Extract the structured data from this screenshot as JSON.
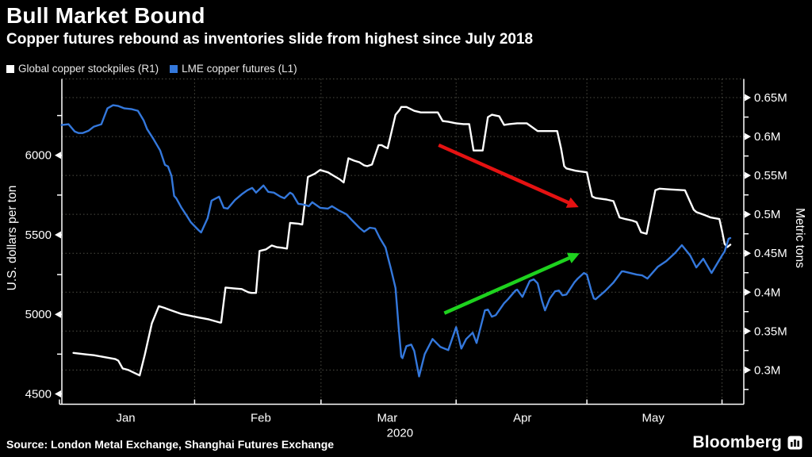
{
  "header": {
    "title": "Bull Market Bound",
    "subtitle": "Copper futures rebound as inventories slide from highest since July 2018"
  },
  "legend": [
    {
      "label": "Global copper stockpiles (R1)",
      "color": "#ffffff"
    },
    {
      "label": "LME copper futures (L1)",
      "color": "#3478dc"
    }
  ],
  "footer": {
    "source": "Source: London Metal Exchange, Shanghai Futures Exchange",
    "brand": "Bloomberg"
  },
  "colors": {
    "background": "#000000",
    "grid": "#4d4d44",
    "axis": "#ffffff",
    "stockpiles": "#ffffff",
    "futures": "#3478dc",
    "red_arrow": "#e51212",
    "green_arrow": "#1ed21e"
  },
  "chart_data": {
    "type": "line",
    "title": "Bull Market Bound",
    "subtitle": "Copper futures rebound as inventories slide from highest since July 2018",
    "x_axis": {
      "unit": "days since Jan 1 2020",
      "range": [
        0,
        157
      ],
      "month_ticks": [
        {
          "label": "Jan",
          "start_day": 0
        },
        {
          "label": "Feb",
          "start_day": 31
        },
        {
          "label": "Mar",
          "start_day": 60
        },
        {
          "label": "Apr",
          "start_day": 91
        },
        {
          "label": "May",
          "start_day": 121
        }
      ],
      "end_boundary_day": 152,
      "year_label": "2020",
      "year_label_under": "Mar"
    },
    "y_left": {
      "label": "U.S. dollars per ton",
      "range": [
        4435,
        6480
      ],
      "major_ticks": [
        4500,
        5000,
        5500,
        6000
      ],
      "minor_ticks": [
        4750,
        5250,
        5750,
        6250
      ]
    },
    "y_right": {
      "label": "Metric tons",
      "range": [
        0.256,
        0.674
      ],
      "major_ticks": [
        {
          "value": 0.3,
          "label": "0.3M"
        },
        {
          "value": 0.35,
          "label": "0.35M"
        },
        {
          "value": 0.4,
          "label": "0.4M"
        },
        {
          "value": 0.45,
          "label": "0.45M"
        },
        {
          "value": 0.5,
          "label": "0.5M"
        },
        {
          "value": 0.55,
          "label": "0.55M"
        },
        {
          "value": 0.6,
          "label": "0.6M"
        },
        {
          "value": 0.65,
          "label": "0.65M"
        }
      ],
      "minor_ticks": [
        0.275,
        0.325,
        0.375,
        0.425,
        0.475,
        0.525,
        0.575,
        0.625
      ],
      "gridlines_at_major": true
    },
    "series": [
      {
        "name": "Global copper stockpiles (R1)",
        "axis": "right",
        "unit": "million metric tons",
        "color": "#ffffff",
        "points": [
          [
            3.2,
            0.322
          ],
          [
            6.1,
            0.32
          ],
          [
            7.9,
            0.319
          ],
          [
            12.8,
            0.314
          ],
          [
            13.5,
            0.312
          ],
          [
            14.5,
            0.302
          ],
          [
            15.8,
            0.3
          ],
          [
            18.4,
            0.293
          ],
          [
            19.6,
            0.32
          ],
          [
            21.2,
            0.36
          ],
          [
            22.8,
            0.382
          ],
          [
            24.0,
            0.38
          ],
          [
            25.4,
            0.377
          ],
          [
            28.0,
            0.372
          ],
          [
            30.6,
            0.369
          ],
          [
            34.3,
            0.365
          ],
          [
            36.8,
            0.361
          ],
          [
            37.1,
            0.361
          ],
          [
            38.1,
            0.406
          ],
          [
            39.9,
            0.405
          ],
          [
            41.8,
            0.404
          ],
          [
            43.3,
            0.4
          ],
          [
            44.0,
            0.399
          ],
          [
            45.1,
            0.399
          ],
          [
            45.9,
            0.453
          ],
          [
            47.4,
            0.455
          ],
          [
            48.7,
            0.46
          ],
          [
            49.8,
            0.458
          ],
          [
            51.1,
            0.457
          ],
          [
            52.2,
            0.456
          ],
          [
            52.9,
            0.489
          ],
          [
            54.8,
            0.488
          ],
          [
            55.7,
            0.487
          ],
          [
            57.0,
            0.548
          ],
          [
            58.5,
            0.552
          ],
          [
            59.8,
            0.557
          ],
          [
            61.6,
            0.554
          ],
          [
            63.1,
            0.549
          ],
          [
            64.3,
            0.545
          ],
          [
            65.2,
            0.541
          ],
          [
            66.3,
            0.572
          ],
          [
            67.6,
            0.569
          ],
          [
            68.8,
            0.567
          ],
          [
            69.9,
            0.563
          ],
          [
            70.6,
            0.562
          ],
          [
            71.7,
            0.564
          ],
          [
            73.2,
            0.589
          ],
          [
            73.9,
            0.589
          ],
          [
            74.8,
            0.586
          ],
          [
            75.3,
            0.585
          ],
          [
            77.1,
            0.628
          ],
          [
            78.0,
            0.634
          ],
          [
            78.4,
            0.638
          ],
          [
            79.6,
            0.638
          ],
          [
            80.7,
            0.635
          ],
          [
            81.4,
            0.633
          ],
          [
            82.9,
            0.631
          ],
          [
            84.7,
            0.631
          ],
          [
            86.8,
            0.631
          ],
          [
            87.9,
            0.62
          ],
          [
            89.2,
            0.619
          ],
          [
            91.0,
            0.617
          ],
          [
            92.7,
            0.616
          ],
          [
            94.0,
            0.616
          ],
          [
            95.0,
            0.582
          ],
          [
            96.6,
            0.582
          ],
          [
            97.1,
            0.582
          ],
          [
            98.3,
            0.625
          ],
          [
            99.2,
            0.628
          ],
          [
            100.9,
            0.626
          ],
          [
            102.0,
            0.615
          ],
          [
            103.2,
            0.616
          ],
          [
            105.0,
            0.617
          ],
          [
            107.2,
            0.617
          ],
          [
            109.7,
            0.607
          ],
          [
            111.9,
            0.607
          ],
          [
            114.2,
            0.607
          ],
          [
            115.1,
            0.584
          ],
          [
            115.8,
            0.562
          ],
          [
            116.3,
            0.559
          ],
          [
            118.4,
            0.556
          ],
          [
            121.0,
            0.554
          ],
          [
            121.6,
            0.538
          ],
          [
            122.2,
            0.523
          ],
          [
            123.0,
            0.521
          ],
          [
            125.5,
            0.519
          ],
          [
            127.1,
            0.517
          ],
          [
            128.5,
            0.496
          ],
          [
            129.8,
            0.494
          ],
          [
            131.4,
            0.492
          ],
          [
            132.4,
            0.49
          ],
          [
            133.4,
            0.477
          ],
          [
            134.7,
            0.475
          ],
          [
            136.7,
            0.531
          ],
          [
            137.7,
            0.533
          ],
          [
            140.2,
            0.532
          ],
          [
            143.5,
            0.531
          ],
          [
            145.5,
            0.506
          ],
          [
            146.1,
            0.503
          ],
          [
            148.1,
            0.499
          ],
          [
            149.4,
            0.496
          ],
          [
            151.4,
            0.494
          ],
          [
            152.0,
            0.479
          ],
          [
            152.6,
            0.462
          ],
          [
            153.2,
            0.458
          ],
          [
            153.9,
            0.461
          ]
        ]
      },
      {
        "name": "LME copper futures (L1)",
        "axis": "left",
        "unit": "U.S. dollars per ton",
        "color": "#3478dc",
        "points": [
          [
            0.5,
            6190
          ],
          [
            2.1,
            6195
          ],
          [
            3.5,
            6150
          ],
          [
            4.4,
            6140
          ],
          [
            5.3,
            6140
          ],
          [
            6.7,
            6155
          ],
          [
            7.9,
            6180
          ],
          [
            9.6,
            6195
          ],
          [
            11.0,
            6295
          ],
          [
            12.3,
            6315
          ],
          [
            13.5,
            6310
          ],
          [
            14.9,
            6295
          ],
          [
            16.6,
            6290
          ],
          [
            18.0,
            6280
          ],
          [
            19.3,
            6220
          ],
          [
            20.1,
            6165
          ],
          [
            21.5,
            6105
          ],
          [
            23.1,
            6030
          ],
          [
            24.2,
            5940
          ],
          [
            24.9,
            5930
          ],
          [
            25.7,
            5870
          ],
          [
            26.3,
            5745
          ],
          [
            26.8,
            5730
          ],
          [
            28.0,
            5670
          ],
          [
            29.2,
            5620
          ],
          [
            30.1,
            5580
          ],
          [
            31.0,
            5555
          ],
          [
            31.9,
            5530
          ],
          [
            32.5,
            5515
          ],
          [
            34.0,
            5605
          ],
          [
            34.9,
            5715
          ],
          [
            36.6,
            5740
          ],
          [
            37.7,
            5670
          ],
          [
            38.6,
            5665
          ],
          [
            40.3,
            5720
          ],
          [
            41.8,
            5755
          ],
          [
            43.1,
            5780
          ],
          [
            44.2,
            5795
          ],
          [
            45.1,
            5765
          ],
          [
            46.8,
            5810
          ],
          [
            47.9,
            5770
          ],
          [
            49.2,
            5765
          ],
          [
            50.7,
            5740
          ],
          [
            51.6,
            5730
          ],
          [
            52.9,
            5765
          ],
          [
            53.5,
            5755
          ],
          [
            54.8,
            5695
          ],
          [
            56.1,
            5690
          ],
          [
            57.2,
            5680
          ],
          [
            58.0,
            5705
          ],
          [
            59.8,
            5670
          ],
          [
            61.6,
            5665
          ],
          [
            62.5,
            5680
          ],
          [
            64.0,
            5655
          ],
          [
            65.8,
            5630
          ],
          [
            67.0,
            5595
          ],
          [
            68.8,
            5545
          ],
          [
            69.9,
            5520
          ],
          [
            71.2,
            5545
          ],
          [
            72.4,
            5540
          ],
          [
            73.5,
            5480
          ],
          [
            74.8,
            5420
          ],
          [
            75.3,
            5365
          ],
          [
            76.0,
            5290
          ],
          [
            77.1,
            5165
          ],
          [
            77.8,
            4920
          ],
          [
            78.4,
            4735
          ],
          [
            78.7,
            4725
          ],
          [
            79.6,
            4800
          ],
          [
            80.7,
            4810
          ],
          [
            81.4,
            4770
          ],
          [
            82.5,
            4610
          ],
          [
            83.8,
            4750
          ],
          [
            85.6,
            4845
          ],
          [
            87.4,
            4795
          ],
          [
            89.2,
            4775
          ],
          [
            91.0,
            4920
          ],
          [
            92.2,
            4785
          ],
          [
            93.3,
            4845
          ],
          [
            94.8,
            4885
          ],
          [
            95.7,
            4820
          ],
          [
            97.6,
            5025
          ],
          [
            98.3,
            5030
          ],
          [
            99.2,
            4985
          ],
          [
            100.1,
            4995
          ],
          [
            102.0,
            5070
          ],
          [
            102.9,
            5095
          ],
          [
            104.6,
            5150
          ],
          [
            105.0,
            5155
          ],
          [
            106.2,
            5110
          ],
          [
            107.9,
            5210
          ],
          [
            108.8,
            5220
          ],
          [
            109.7,
            5195
          ],
          [
            110.7,
            5085
          ],
          [
            111.4,
            5025
          ],
          [
            112.5,
            5100
          ],
          [
            113.7,
            5145
          ],
          [
            114.6,
            5150
          ],
          [
            115.4,
            5120
          ],
          [
            116.3,
            5125
          ],
          [
            118.1,
            5200
          ],
          [
            118.9,
            5225
          ],
          [
            120.3,
            5260
          ],
          [
            121.0,
            5250
          ],
          [
            122.0,
            5150
          ],
          [
            122.6,
            5100
          ],
          [
            123.0,
            5095
          ],
          [
            125.1,
            5145
          ],
          [
            127.1,
            5200
          ],
          [
            129.0,
            5270
          ],
          [
            129.4,
            5270
          ],
          [
            132.4,
            5250
          ],
          [
            133.7,
            5245
          ],
          [
            134.9,
            5225
          ],
          [
            137.3,
            5300
          ],
          [
            139.2,
            5335
          ],
          [
            141.2,
            5385
          ],
          [
            142.8,
            5435
          ],
          [
            144.7,
            5370
          ],
          [
            146.1,
            5295
          ],
          [
            147.7,
            5350
          ],
          [
            149.4,
            5270
          ],
          [
            149.6,
            5260
          ],
          [
            152.0,
            5370
          ],
          [
            152.6,
            5395
          ],
          [
            153.5,
            5475
          ],
          [
            153.9,
            5480
          ]
        ]
      }
    ],
    "annotations": [
      {
        "type": "arrow",
        "name": "stockpiles-down-arrow",
        "color": "#e51212",
        "axis": "right",
        "from": [
          87.0,
          0.589
        ],
        "to": [
          118.4,
          0.511
        ]
      },
      {
        "type": "arrow",
        "name": "futures-up-arrow",
        "color": "#1ed21e",
        "axis": "right",
        "from": [
          88.3,
          0.373
        ],
        "to": [
          118.6,
          0.448
        ]
      }
    ],
    "legend_position": "top-left",
    "grid": "dotted"
  }
}
